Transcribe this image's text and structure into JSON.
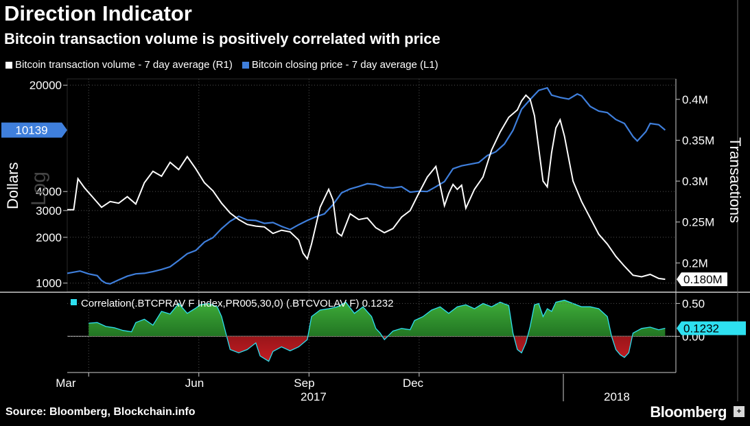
{
  "header": {
    "title": "Direction Indicator",
    "subtitle": "Bitcoin transaction volume is positively correlated with price"
  },
  "legend": {
    "items": [
      {
        "label": "Bitcoin transaction volume - 7 day average (R1)",
        "color": "#ffffff"
      },
      {
        "label": "Bitcoin closing price - 7 day average (L1)",
        "color": "#3f7fdc"
      }
    ]
  },
  "footer": {
    "source": "Source: Bloomberg, Blockchain.info",
    "brand": "Bloomberg"
  },
  "chart_data": [
    {
      "type": "line",
      "x_labels": [
        "Mar",
        "Jun",
        "Sep",
        "Dec"
      ],
      "year_labels": [
        "2017",
        "2018"
      ],
      "left_axis": {
        "label": "Dollars",
        "scale": "Log",
        "ticks": [
          "20000",
          "4000",
          "3000",
          "2000",
          "1000"
        ],
        "ylim": [
          880,
          22000
        ]
      },
      "right_axis": {
        "label": "Transactions",
        "ticks": [
          "0.4M",
          "0.35M",
          "0.3M",
          "0.25M",
          "0.2M"
        ],
        "ylim": [
          0.165,
          0.425
        ]
      },
      "last_value_labels": {
        "price": "10139",
        "volume": "0.180M"
      },
      "series": [
        {
          "name": "Bitcoin closing price - 7 day average (L1)",
          "axis": "left",
          "color": "#3f7fdc",
          "points": [
            [
              0,
              1160
            ],
            [
              0.03,
              1200
            ],
            [
              0.05,
              1150
            ],
            [
              0.07,
              1120
            ],
            [
              0.08,
              1040
            ],
            [
              0.09,
              1000
            ],
            [
              0.1,
              990
            ],
            [
              0.12,
              1050
            ],
            [
              0.14,
              1110
            ],
            [
              0.16,
              1150
            ],
            [
              0.18,
              1160
            ],
            [
              0.2,
              1190
            ],
            [
              0.22,
              1230
            ],
            [
              0.24,
              1280
            ],
            [
              0.26,
              1410
            ],
            [
              0.28,
              1560
            ],
            [
              0.3,
              1640
            ],
            [
              0.32,
              1860
            ],
            [
              0.34,
              1990
            ],
            [
              0.36,
              2280
            ],
            [
              0.38,
              2550
            ],
            [
              0.4,
              2750
            ],
            [
              0.42,
              2600
            ],
            [
              0.44,
              2580
            ],
            [
              0.46,
              2470
            ],
            [
              0.48,
              2500
            ],
            [
              0.5,
              2360
            ],
            [
              0.52,
              2250
            ],
            [
              0.54,
              2420
            ],
            [
              0.56,
              2580
            ],
            [
              0.58,
              2730
            ],
            [
              0.6,
              2850
            ],
            [
              0.62,
              3280
            ],
            [
              0.64,
              3920
            ],
            [
              0.66,
              4160
            ],
            [
              0.68,
              4320
            ],
            [
              0.7,
              4500
            ],
            [
              0.72,
              4450
            ],
            [
              0.74,
              4250
            ],
            [
              0.76,
              4230
            ],
            [
              0.78,
              4300
            ],
            [
              0.8,
              3960
            ],
            [
              0.82,
              4020
            ],
            [
              0.84,
              4000
            ],
            [
              0.86,
              4300
            ],
            [
              0.88,
              4650
            ],
            [
              0.9,
              5650
            ],
            [
              0.92,
              5900
            ],
            [
              0.94,
              6050
            ],
            [
              0.96,
              6200
            ],
            [
              0.98,
              6900
            ],
            [
              1.0,
              7300
            ],
            [
              1.02,
              8200
            ],
            [
              1.04,
              10100
            ],
            [
              1.06,
              13900
            ],
            [
              1.08,
              16100
            ],
            [
              1.1,
              18500
            ],
            [
              1.12,
              19200
            ],
            [
              1.13,
              17200
            ],
            [
              1.15,
              16600
            ],
            [
              1.17,
              16200
            ],
            [
              1.19,
              17500
            ],
            [
              1.2,
              17000
            ],
            [
              1.22,
              14500
            ],
            [
              1.24,
              13500
            ],
            [
              1.26,
              13200
            ],
            [
              1.28,
              11900
            ],
            [
              1.3,
              11200
            ],
            [
              1.32,
              9200
            ],
            [
              1.33,
              8600
            ],
            [
              1.35,
              9900
            ],
            [
              1.36,
              11200
            ],
            [
              1.38,
              11000
            ],
            [
              1.395,
              10139
            ]
          ]
        },
        {
          "name": "Bitcoin transaction volume - 7 day average (R1)",
          "axis": "right",
          "color": "#ffffff",
          "points": [
            [
              0,
              0.265
            ],
            [
              0.015,
              0.265
            ],
            [
              0.025,
              0.303
            ],
            [
              0.04,
              0.292
            ],
            [
              0.06,
              0.28
            ],
            [
              0.08,
              0.268
            ],
            [
              0.1,
              0.275
            ],
            [
              0.12,
              0.273
            ],
            [
              0.14,
              0.281
            ],
            [
              0.16,
              0.272
            ],
            [
              0.18,
              0.298
            ],
            [
              0.2,
              0.312
            ],
            [
              0.22,
              0.306
            ],
            [
              0.24,
              0.323
            ],
            [
              0.26,
              0.314
            ],
            [
              0.28,
              0.33
            ],
            [
              0.3,
              0.315
            ],
            [
              0.32,
              0.298
            ],
            [
              0.34,
              0.288
            ],
            [
              0.36,
              0.273
            ],
            [
              0.38,
              0.261
            ],
            [
              0.4,
              0.253
            ],
            [
              0.42,
              0.247
            ],
            [
              0.44,
              0.245
            ],
            [
              0.46,
              0.244
            ],
            [
              0.48,
              0.236
            ],
            [
              0.5,
              0.24
            ],
            [
              0.52,
              0.238
            ],
            [
              0.54,
              0.228
            ],
            [
              0.55,
              0.212
            ],
            [
              0.56,
              0.205
            ],
            [
              0.57,
              0.223
            ],
            [
              0.59,
              0.268
            ],
            [
              0.61,
              0.29
            ],
            [
              0.62,
              0.277
            ],
            [
              0.63,
              0.237
            ],
            [
              0.64,
              0.233
            ],
            [
              0.66,
              0.26
            ],
            [
              0.68,
              0.253
            ],
            [
              0.7,
              0.255
            ],
            [
              0.72,
              0.243
            ],
            [
              0.74,
              0.237
            ],
            [
              0.76,
              0.242
            ],
            [
              0.78,
              0.256
            ],
            [
              0.8,
              0.264
            ],
            [
              0.82,
              0.285
            ],
            [
              0.84,
              0.305
            ],
            [
              0.86,
              0.318
            ],
            [
              0.87,
              0.295
            ],
            [
              0.88,
              0.27
            ],
            [
              0.89,
              0.285
            ],
            [
              0.9,
              0.296
            ],
            [
              0.91,
              0.29
            ],
            [
              0.92,
              0.295
            ],
            [
              0.93,
              0.267
            ],
            [
              0.95,
              0.29
            ],
            [
              0.97,
              0.305
            ],
            [
              0.99,
              0.338
            ],
            [
              1.01,
              0.36
            ],
            [
              1.03,
              0.378
            ],
            [
              1.05,
              0.387
            ],
            [
              1.06,
              0.398
            ],
            [
              1.07,
              0.405
            ],
            [
              1.08,
              0.4
            ],
            [
              1.09,
              0.38
            ],
            [
              1.1,
              0.34
            ],
            [
              1.11,
              0.3
            ],
            [
              1.12,
              0.293
            ],
            [
              1.13,
              0.335
            ],
            [
              1.14,
              0.365
            ],
            [
              1.15,
              0.375
            ],
            [
              1.16,
              0.355
            ],
            [
              1.18,
              0.3
            ],
            [
              1.2,
              0.275
            ],
            [
              1.22,
              0.255
            ],
            [
              1.24,
              0.235
            ],
            [
              1.26,
              0.223
            ],
            [
              1.28,
              0.208
            ],
            [
              1.3,
              0.196
            ],
            [
              1.32,
              0.185
            ],
            [
              1.34,
              0.183
            ],
            [
              1.36,
              0.186
            ],
            [
              1.38,
              0.181
            ],
            [
              1.395,
              0.18
            ]
          ]
        }
      ]
    },
    {
      "type": "area",
      "label": "Correlation(.BTCPRAV F Index,PR005,30,0) (.BTCVOLAV F) 0.1232",
      "color": "#2ee0f0",
      "positive_color": "#1f8a2a",
      "negative_color": "#8b1216",
      "ticks": [
        "0.50",
        "0.00"
      ],
      "ylim": [
        -0.55,
        0.65
      ],
      "last_value": "0.1232",
      "points": [
        [
          0.05,
          0.2
        ],
        [
          0.07,
          0.21
        ],
        [
          0.09,
          0.15
        ],
        [
          0.11,
          0.13
        ],
        [
          0.13,
          0.09
        ],
        [
          0.15,
          0.07
        ],
        [
          0.16,
          0.21
        ],
        [
          0.18,
          0.26
        ],
        [
          0.2,
          0.17
        ],
        [
          0.22,
          0.38
        ],
        [
          0.24,
          0.34
        ],
        [
          0.26,
          0.5
        ],
        [
          0.28,
          0.35
        ],
        [
          0.3,
          0.43
        ],
        [
          0.31,
          0.48
        ],
        [
          0.33,
          0.5
        ],
        [
          0.35,
          0.45
        ],
        [
          0.36,
          0.3
        ],
        [
          0.37,
          0.05
        ],
        [
          0.38,
          -0.2
        ],
        [
          0.4,
          -0.25
        ],
        [
          0.42,
          -0.2
        ],
        [
          0.44,
          -0.1
        ],
        [
          0.45,
          -0.3
        ],
        [
          0.47,
          -0.38
        ],
        [
          0.48,
          -0.23
        ],
        [
          0.5,
          -0.16
        ],
        [
          0.52,
          -0.22
        ],
        [
          0.54,
          -0.16
        ],
        [
          0.56,
          -0.05
        ],
        [
          0.57,
          0.3
        ],
        [
          0.59,
          0.4
        ],
        [
          0.61,
          0.42
        ],
        [
          0.63,
          0.45
        ],
        [
          0.65,
          0.52
        ],
        [
          0.67,
          0.35
        ],
        [
          0.69,
          0.45
        ],
        [
          0.71,
          0.3
        ],
        [
          0.72,
          0.12
        ],
        [
          0.73,
          0.05
        ],
        [
          0.74,
          -0.05
        ],
        [
          0.76,
          0.08
        ],
        [
          0.78,
          0.12
        ],
        [
          0.8,
          0.1
        ],
        [
          0.81,
          0.24
        ],
        [
          0.83,
          0.3
        ],
        [
          0.85,
          0.4
        ],
        [
          0.87,
          0.45
        ],
        [
          0.89,
          0.35
        ],
        [
          0.91,
          0.45
        ],
        [
          0.93,
          0.48
        ],
        [
          0.95,
          0.42
        ],
        [
          0.97,
          0.5
        ],
        [
          0.99,
          0.45
        ],
        [
          1.01,
          0.52
        ],
        [
          1.03,
          0.47
        ],
        [
          1.04,
          0.05
        ],
        [
          1.05,
          -0.2
        ],
        [
          1.06,
          -0.25
        ],
        [
          1.07,
          -0.1
        ],
        [
          1.08,
          0.15
        ],
        [
          1.09,
          0.48
        ],
        [
          1.1,
          0.5
        ],
        [
          1.11,
          0.3
        ],
        [
          1.12,
          0.42
        ],
        [
          1.13,
          0.38
        ],
        [
          1.14,
          0.52
        ],
        [
          1.16,
          0.55
        ],
        [
          1.18,
          0.5
        ],
        [
          1.2,
          0.45
        ],
        [
          1.22,
          0.45
        ],
        [
          1.24,
          0.42
        ],
        [
          1.26,
          0.3
        ],
        [
          1.27,
          0.0
        ],
        [
          1.28,
          -0.2
        ],
        [
          1.29,
          -0.28
        ],
        [
          1.3,
          -0.32
        ],
        [
          1.31,
          -0.25
        ],
        [
          1.32,
          0.05
        ],
        [
          1.34,
          0.12
        ],
        [
          1.36,
          0.14
        ],
        [
          1.38,
          0.1
        ],
        [
          1.395,
          0.1232
        ]
      ]
    }
  ]
}
